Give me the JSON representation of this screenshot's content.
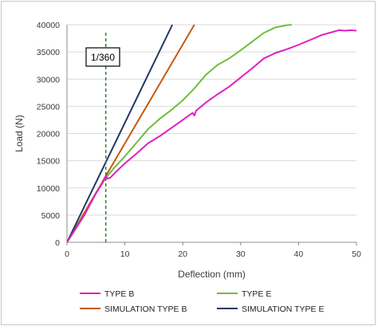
{
  "chart_data": {
    "type": "line",
    "xlabel": "Deflection (mm)",
    "ylabel": "Load (N)",
    "xlim": [
      0,
      50
    ],
    "ylim": [
      0,
      40000
    ],
    "x_ticks": [
      "0",
      "10",
      "20",
      "30",
      "40",
      "50"
    ],
    "y_ticks": [
      "0",
      "5000",
      "10000",
      "15000",
      "20000",
      "25000",
      "30000",
      "35000",
      "40000"
    ],
    "grid": "horizontal",
    "legend_position": "bottom",
    "annotation": {
      "text": "1/360",
      "x": 6.7,
      "line_style": "dashed",
      "color": "#2e7d32"
    },
    "series": [
      {
        "name": "TYPE B",
        "color": "#e020c0",
        "points": [
          [
            0,
            0
          ],
          [
            3,
            5000
          ],
          [
            5,
            9000
          ],
          [
            6.2,
            11000
          ],
          [
            6.7,
            12200
          ],
          [
            7,
            11700
          ],
          [
            7.5,
            11900
          ],
          [
            8.5,
            13000
          ],
          [
            10,
            14500
          ],
          [
            12,
            16300
          ],
          [
            14,
            18200
          ],
          [
            16,
            19500
          ],
          [
            18,
            21000
          ],
          [
            20,
            22500
          ],
          [
            21.7,
            23800
          ],
          [
            22,
            23300
          ],
          [
            22.3,
            24200
          ],
          [
            24,
            25700
          ],
          [
            26,
            27200
          ],
          [
            28,
            28600
          ],
          [
            30,
            30300
          ],
          [
            32,
            32000
          ],
          [
            34,
            33800
          ],
          [
            36,
            34800
          ],
          [
            38,
            35500
          ],
          [
            40,
            36300
          ],
          [
            42,
            37200
          ],
          [
            44,
            38100
          ],
          [
            46,
            38700
          ],
          [
            47,
            39000
          ],
          [
            48,
            38900
          ],
          [
            49,
            39000
          ],
          [
            50,
            38900
          ]
        ]
      },
      {
        "name": "TYPE E",
        "color": "#6fbd3c",
        "points": [
          [
            0,
            0
          ],
          [
            3,
            5000
          ],
          [
            5,
            9000
          ],
          [
            6,
            10800
          ],
          [
            7,
            12200
          ],
          [
            8,
            13500
          ],
          [
            10,
            15800
          ],
          [
            12,
            18300
          ],
          [
            14,
            20800
          ],
          [
            16,
            22700
          ],
          [
            18,
            24300
          ],
          [
            20,
            26100
          ],
          [
            22,
            28300
          ],
          [
            24,
            30800
          ],
          [
            26,
            32600
          ],
          [
            28,
            33800
          ],
          [
            30,
            35300
          ],
          [
            32,
            36900
          ],
          [
            34,
            38500
          ],
          [
            36,
            39500
          ],
          [
            38,
            39900
          ],
          [
            38.8,
            40000
          ]
        ]
      },
      {
        "name": "SIMULATION TYPE B",
        "color": "#c55a11",
        "points": [
          [
            0,
            0
          ],
          [
            22,
            40000
          ]
        ]
      },
      {
        "name": "SIMULATION TYPE E",
        "color": "#1f3864",
        "points": [
          [
            0,
            0
          ],
          [
            18.2,
            40000
          ]
        ]
      }
    ]
  }
}
